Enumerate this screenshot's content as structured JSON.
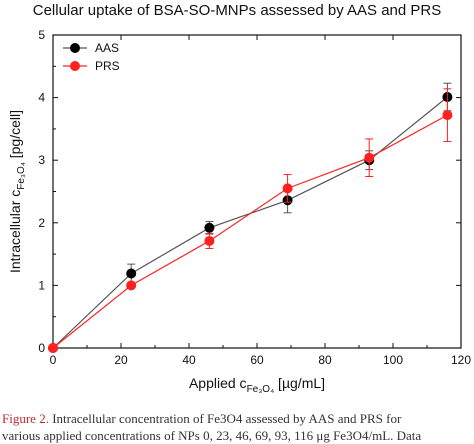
{
  "chart_data": {
    "type": "line",
    "title": "Cellular uptake of BSA-SO-MNPs assessed by AAS and PRS",
    "xlabel": "Applied c",
    "xlabel_sub": "Fe3O4",
    "xlabel_unit": " [µg/mL]",
    "ylabel": "Intracellular c",
    "ylabel_sub": "Fe3O4",
    "ylabel_unit": " [pg/cell]",
    "xlim": [
      0,
      120
    ],
    "ylim": [
      0,
      5
    ],
    "xticks": [
      "0",
      "20",
      "40",
      "60",
      "80",
      "100",
      "120"
    ],
    "yticks": [
      "0",
      "1",
      "2",
      "3",
      "4",
      "5"
    ],
    "legend_position": "top-left",
    "series": [
      {
        "name": "AAS",
        "color": "#000000",
        "line_color": "#555555",
        "x": [
          0,
          23,
          46,
          69,
          93,
          116
        ],
        "y": [
          0,
          1.19,
          1.92,
          2.36,
          3.0,
          4.01
        ],
        "err": [
          0,
          0.15,
          0.1,
          0.2,
          0.15,
          0.22
        ]
      },
      {
        "name": "PRS",
        "color": "#ff2020",
        "line_color": "#ff2020",
        "x": [
          0,
          23,
          46,
          69,
          93,
          116
        ],
        "y": [
          0,
          1.0,
          1.71,
          2.55,
          3.04,
          3.72
        ],
        "err": [
          0,
          0.0,
          0.12,
          0.22,
          0.3,
          0.42
        ]
      }
    ]
  },
  "caption": {
    "label": "Figure 2.",
    "line1": " Intracellular concentration of Fe3O4 assessed by AAS and PRS for",
    "line2": "various applied concentrations of NPs 0, 23, 46, 69, 93, 116 μg Fe3O4/mL. Data"
  }
}
